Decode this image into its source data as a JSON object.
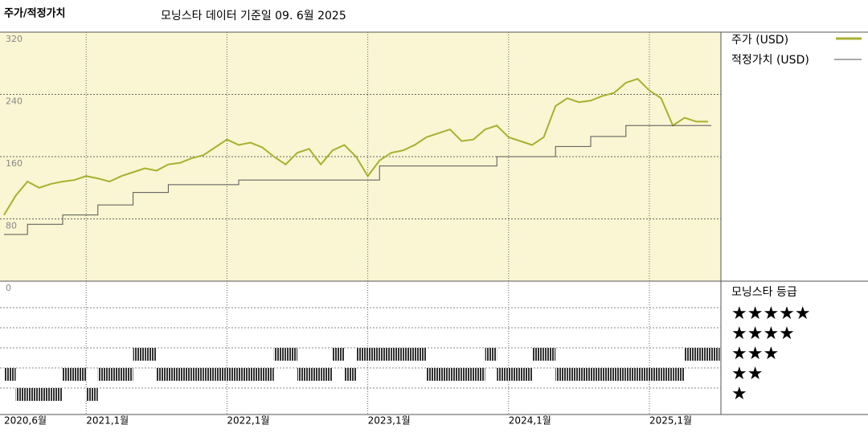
{
  "chart_data": {
    "type": "line",
    "title": "주가/적정가치",
    "subtitle": "모닝스타 데이터 기준일 09. 6월 2025",
    "x": [
      "2020-06",
      "2020-07",
      "2020-08",
      "2020-09",
      "2020-10",
      "2020-11",
      "2020-12",
      "2021-01",
      "2021-02",
      "2021-03",
      "2021-04",
      "2021-05",
      "2021-06",
      "2021-07",
      "2021-08",
      "2021-09",
      "2021-10",
      "2021-11",
      "2021-12",
      "2022-01",
      "2022-02",
      "2022-03",
      "2022-04",
      "2022-05",
      "2022-06",
      "2022-07",
      "2022-08",
      "2022-09",
      "2022-10",
      "2022-11",
      "2022-12",
      "2023-01",
      "2023-02",
      "2023-03",
      "2023-04",
      "2023-05",
      "2023-06",
      "2023-07",
      "2023-08",
      "2023-09",
      "2023-10",
      "2023-11",
      "2023-12",
      "2024-01",
      "2024-02",
      "2024-03",
      "2024-04",
      "2024-05",
      "2024-06",
      "2024-07",
      "2024-08",
      "2024-09",
      "2024-10",
      "2024-11",
      "2024-12",
      "2025-01",
      "2025-02",
      "2025-03",
      "2025-04",
      "2025-05",
      "2025-06"
    ],
    "xlim": [
      "2020-06",
      "2025-06"
    ],
    "xticks": [
      {
        "value": "2020-06",
        "label": "2020,6월"
      },
      {
        "value": "2021-01",
        "label": "2021,1월"
      },
      {
        "value": "2022-01",
        "label": "2022,1월"
      },
      {
        "value": "2023-01",
        "label": "2023,1월"
      },
      {
        "value": "2024-01",
        "label": "2024,1월"
      },
      {
        "value": "2025-01",
        "label": "2025,1월"
      }
    ],
    "ylim": [
      0,
      320
    ],
    "yticks": [
      0,
      80,
      160,
      240,
      320
    ],
    "grid": true,
    "series": [
      {
        "name": "주가 (USD)",
        "color": "#a8b030",
        "values": [
          85,
          110,
          128,
          120,
          125,
          128,
          130,
          135,
          132,
          128,
          135,
          140,
          145,
          142,
          150,
          152,
          158,
          162,
          172,
          182,
          175,
          178,
          172,
          160,
          150,
          165,
          170,
          150,
          168,
          175,
          160,
          135,
          155,
          165,
          168,
          175,
          185,
          190,
          195,
          180,
          182,
          195,
          200,
          185,
          180,
          175,
          185,
          225,
          235,
          230,
          232,
          238,
          242,
          255,
          260,
          245,
          235,
          200,
          210,
          205,
          205
        ]
      },
      {
        "name": "적정가치 (USD)",
        "color": "#555555",
        "values": [
          60,
          60,
          73,
          73,
          73,
          85,
          85,
          85,
          98,
          98,
          98,
          114,
          114,
          114,
          124,
          124,
          124,
          124,
          124,
          124,
          130,
          130,
          130,
          130,
          130,
          130,
          130,
          130,
          130,
          130,
          130,
          130,
          148,
          148,
          148,
          148,
          148,
          148,
          148,
          148,
          148,
          148,
          160,
          160,
          160,
          160,
          160,
          173,
          173,
          173,
          186,
          186,
          186,
          200,
          200,
          200,
          200,
          200,
          200,
          200,
          200
        ]
      }
    ],
    "ratings": {
      "title": "모닝스타 등급",
      "labels": [
        "★",
        "★★",
        "★★★",
        "★★★★",
        "★★★★★"
      ],
      "values": [
        2,
        1,
        1,
        1,
        1,
        2,
        2,
        1,
        2,
        2,
        2,
        3,
        3,
        2,
        2,
        2,
        2,
        2,
        2,
        2,
        2,
        2,
        2,
        3,
        3,
        2,
        2,
        2,
        3,
        2,
        3,
        3,
        3,
        3,
        3,
        3,
        2,
        2,
        2,
        2,
        2,
        3,
        2,
        2,
        2,
        3,
        3,
        2,
        2,
        2,
        2,
        2,
        2,
        2,
        2,
        2,
        2,
        2,
        3,
        3,
        3
      ]
    }
  }
}
